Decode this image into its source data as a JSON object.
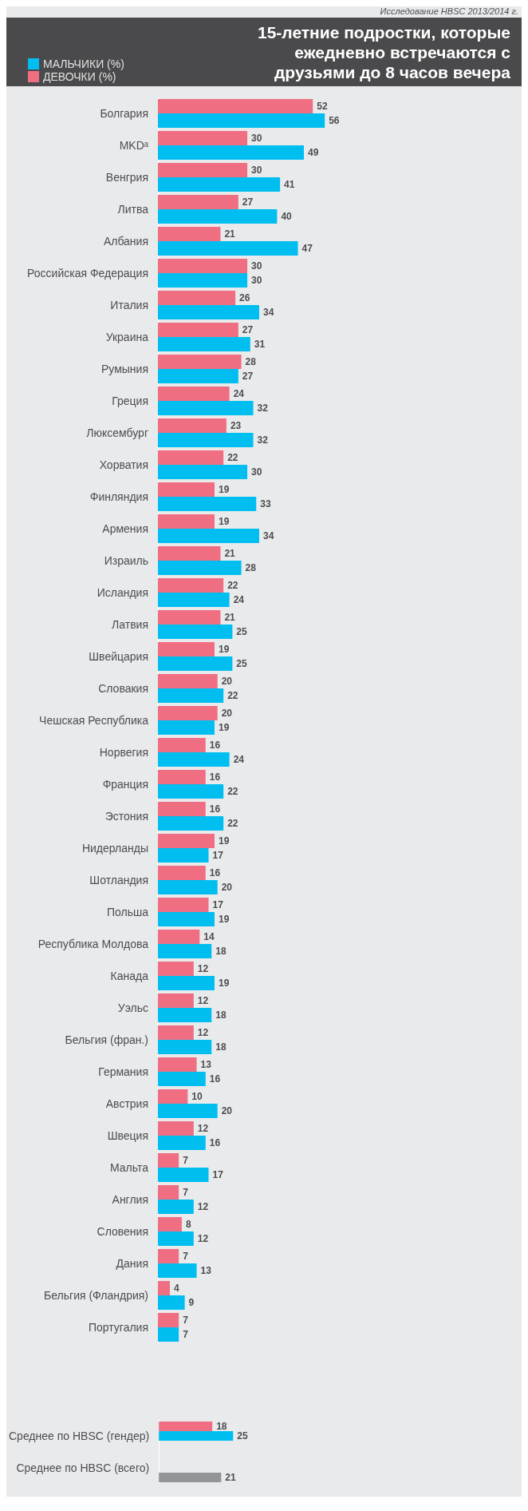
{
  "chart_data": [
    {
      "type": "bar",
      "orientation": "horizontal",
      "title": "15-летние подростки, которые ежедневно встречаются с друзьями до 8 часов вечера",
      "annotations": [
        "Исследование HBSC 2013/2014 г."
      ],
      "legend": "top left",
      "data_labels": true,
      "grid": false,
      "tick_labels": "y",
      "categories": [
        "Болгария",
        "MKDᵃ",
        "Венгрия",
        "Литва",
        "Албания",
        "Российская Федерация",
        "Италия",
        "Украина",
        "Румыния",
        "Греция",
        "Люксембург",
        "Хорватия",
        "Финляндия",
        "Армения",
        "Израиль",
        "Исландия",
        "Латвия",
        "Швейцария",
        "Словакия",
        "Чешская Республика",
        "Норвегия",
        "Франция",
        "Эстония",
        "Нидерланды",
        "Шотландия",
        "Польша",
        "Республика Молдова",
        "Канада",
        "Уэльс",
        "Бельгия (фран.)",
        "Германия",
        "Австрия",
        "Швеция",
        "Мальта",
        "Англия",
        "Словения",
        "Дания",
        "Бельгия (Фландрия)",
        "Португалия"
      ],
      "series": [
        {
          "name": "ДЕВОЧКИ (%)",
          "color": "#f06e82",
          "values": [
            52,
            30,
            30,
            27,
            21,
            30,
            26,
            27,
            28,
            24,
            23,
            22,
            19,
            19,
            21,
            22,
            21,
            19,
            20,
            20,
            16,
            16,
            16,
            19,
            16,
            17,
            14,
            12,
            12,
            12,
            13,
            10,
            12,
            7,
            7,
            8,
            7,
            4,
            7
          ]
        },
        {
          "name": "МАЛЬЧИКИ (%)",
          "color": "#00bff0",
          "values": [
            56,
            49,
            41,
            40,
            47,
            30,
            34,
            31,
            27,
            32,
            32,
            30,
            33,
            34,
            28,
            24,
            25,
            25,
            22,
            19,
            24,
            22,
            22,
            17,
            20,
            19,
            18,
            19,
            18,
            18,
            16,
            20,
            16,
            17,
            12,
            12,
            13,
            9,
            7
          ]
        }
      ]
    },
    {
      "type": "bar",
      "orientation": "horizontal",
      "data_labels": true,
      "grid": false,
      "tick_labels": "y",
      "legend": false,
      "categories": [
        "Среднее по HBSC (гендер)",
        "Среднее по HBSC (всего)"
      ],
      "series": [
        {
          "color": "#f06e82",
          "values": [
            18,
            null
          ]
        },
        {
          "color": "#00bff0",
          "values": [
            25,
            null
          ]
        },
        {
          "color": "#929497",
          "values": [
            null,
            21
          ]
        }
      ]
    }
  ]
}
